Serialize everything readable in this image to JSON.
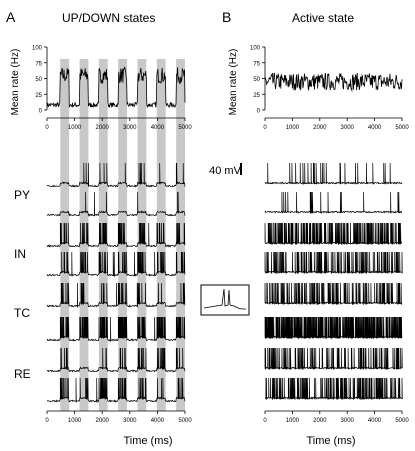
{
  "panels": [
    {
      "letter": "A",
      "title": "UP/DOWN states"
    },
    {
      "letter": "B",
      "title": "Active state"
    }
  ],
  "scale_bar_label": "40 mV",
  "cell_labels": [
    "PY",
    "IN",
    "TC",
    "RE"
  ],
  "colors": {
    "trace": "#000000",
    "shade": "#c8c8c8"
  },
  "chart_data": [
    {
      "type": "line",
      "panel": "A",
      "ylabel": "Mean rate (Hz)",
      "xlabel": "Time (ms)",
      "xlim": [
        0,
        5000
      ],
      "ylim": [
        0,
        100
      ],
      "xticks": [
        0,
        1000,
        2000,
        3000,
        4000,
        5000
      ],
      "yticks": [
        0,
        25,
        50,
        75,
        100
      ],
      "up_states_ms": [
        [
          480,
          800
        ],
        [
          1180,
          1500
        ],
        [
          1880,
          2200
        ],
        [
          2580,
          2900
        ],
        [
          3280,
          3600
        ],
        [
          3980,
          4300
        ],
        [
          4680,
          5000
        ]
      ],
      "rate_up_hz": 55,
      "rate_down_hz": 8
    },
    {
      "type": "line",
      "panel": "B",
      "ylabel": "Mean rate (Hz)",
      "xlabel": "Time (ms)",
      "xlim": [
        0,
        5000
      ],
      "ylim": [
        0,
        100
      ],
      "xticks": [
        0,
        1000,
        2000,
        3000,
        4000,
        5000
      ],
      "yticks": [
        0,
        25,
        50,
        75,
        100
      ],
      "rate_mean_hz": 45
    }
  ]
}
